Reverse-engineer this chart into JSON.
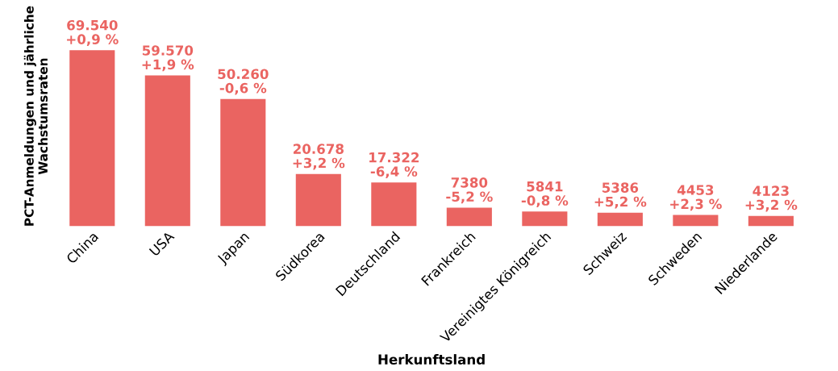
{
  "chart_data": {
    "type": "bar",
    "xlabel": "Herkunftsland",
    "ylabel": "PCT-Anmeldungen und jährliche\nWachstumsraten",
    "categories": [
      "China",
      "USA",
      "Japan",
      "Südkorea",
      "Deutschland",
      "Frankreich",
      "Vereinigtes Königreich",
      "Schweiz",
      "Schweden",
      "Niederlande"
    ],
    "values": [
      69540,
      59570,
      50260,
      20678,
      17322,
      7380,
      5841,
      5386,
      4453,
      4123
    ],
    "value_labels": [
      "69.540\n+0,9 %",
      "59.570\n+1,9 %",
      "50.260\n-0,6 %",
      "20.678\n+3,2 %",
      "17.322\n-6,4 %",
      "7380\n-5,2 %",
      "5841\n-0,8 %",
      "5386\n+5,2 %",
      "4453\n+2,3 %",
      "4123\n+3,2 %"
    ],
    "color": "#ea6461",
    "grid": false,
    "legend": false
  }
}
